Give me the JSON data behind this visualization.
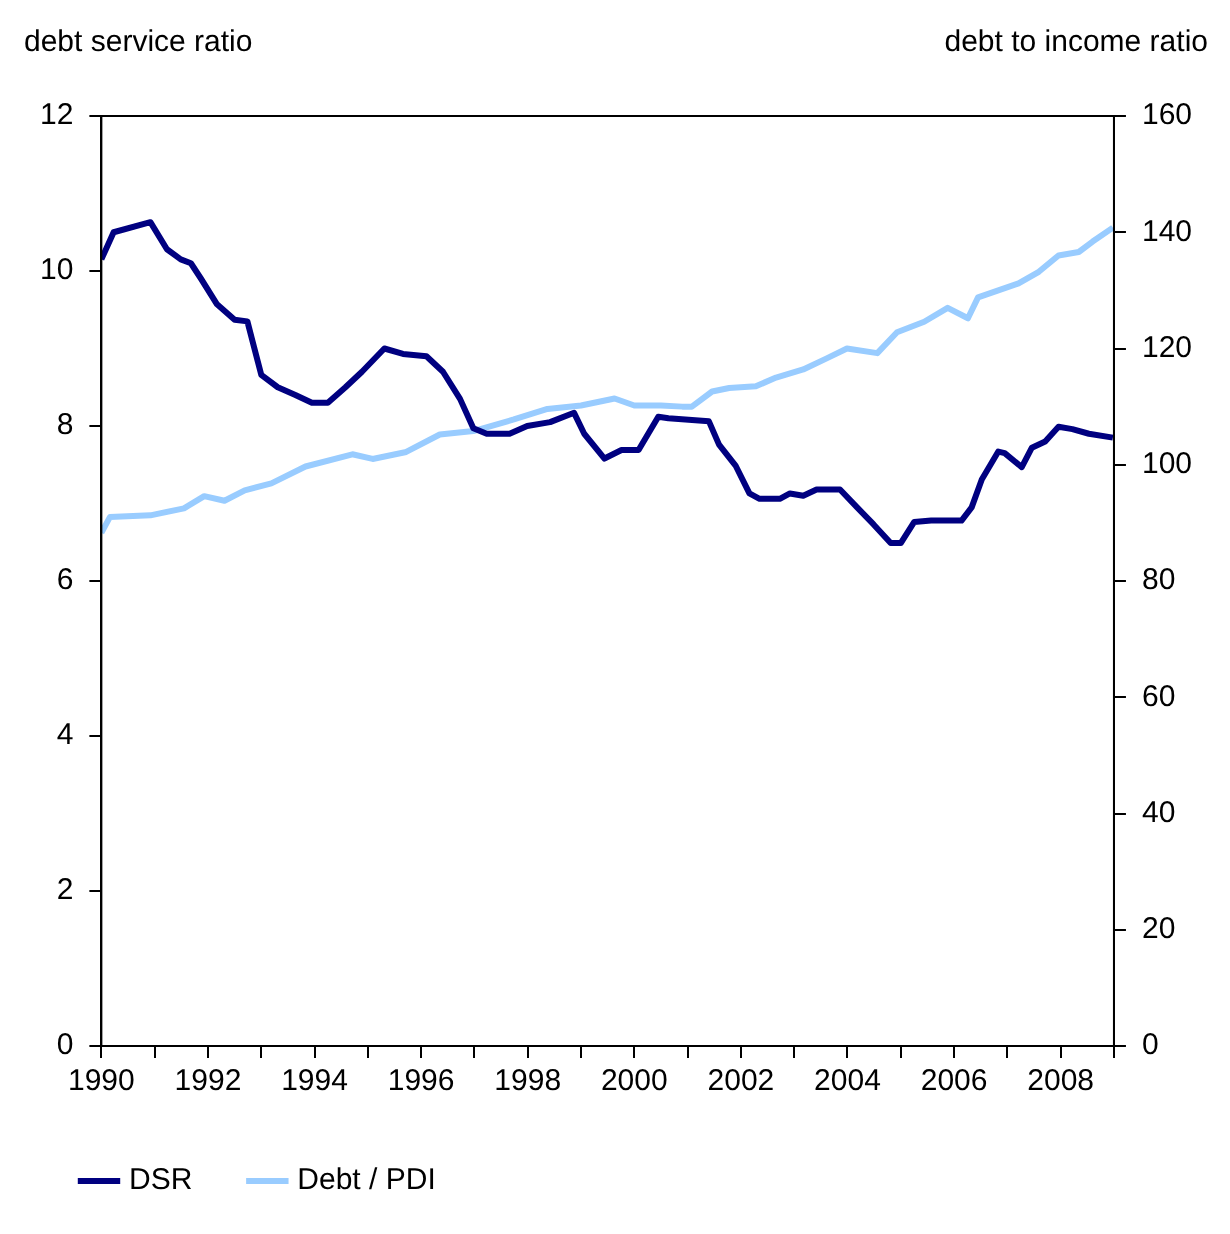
{
  "chart_data": {
    "type": "line",
    "ylabel": "debt service ratio",
    "y2label": "debt to income ratio",
    "xlim": [
      1990,
      2009
    ],
    "xticks": [
      1990,
      {
        "value": 1991,
        "label": null
      },
      1992,
      {
        "value": 1993,
        "label": null
      },
      1994,
      {
        "value": 1995,
        "label": null
      },
      1996,
      {
        "value": 1997,
        "label": null
      },
      1998,
      {
        "value": 1999,
        "label": null
      },
      2000,
      {
        "value": 2001,
        "label": null
      },
      2002,
      {
        "value": 2003,
        "label": null
      },
      2004,
      {
        "value": 2005,
        "label": null
      },
      2006,
      {
        "value": 2007,
        "label": null
      },
      2008,
      {
        "value": 2009,
        "label": null
      }
    ],
    "ylim": [
      0,
      12
    ],
    "yticks": [
      0,
      2,
      4,
      6,
      8,
      10,
      12
    ],
    "y2lim": [
      0,
      160
    ],
    "y2ticks": [
      0,
      20,
      40,
      60,
      80,
      100,
      120,
      140,
      160
    ],
    "grid": false,
    "legend": "bottom",
    "marker": "none",
    "line_style": "solid",
    "series": [
      {
        "name": "DSR",
        "color": "#000080",
        "x": [
          1990.0,
          1990.23,
          1990.92,
          1991.23,
          1991.49,
          1991.68,
          1991.87,
          1992.17,
          1992.5,
          1992.74,
          1993.0,
          1993.31,
          1993.64,
          1993.95,
          1994.25,
          1994.58,
          1994.89,
          1995.31,
          1995.66,
          1996.1,
          1996.41,
          1996.73,
          1996.98,
          1997.23,
          1997.66,
          1997.99,
          1998.42,
          1998.87,
          1999.06,
          1999.44,
          1999.76,
          2000.08,
          2000.45,
          2000.64,
          2001.4,
          2001.59,
          2001.9,
          2002.16,
          2002.35,
          2002.73,
          2002.92,
          2003.17,
          2003.42,
          2003.86,
          2004.18,
          2004.49,
          2004.81,
          2005.0,
          2005.25,
          2005.57,
          2006.14,
          2006.33,
          2006.52,
          2006.83,
          2006.95,
          2007.27,
          2007.46,
          2007.71,
          2007.96,
          2008.22,
          2008.53,
          2008.98
        ],
        "values": [
          10.15,
          10.5,
          10.63,
          10.28,
          10.15,
          10.1,
          9.9,
          9.57,
          9.37,
          9.35,
          8.66,
          8.5,
          8.4,
          8.3,
          8.3,
          8.5,
          8.7,
          9.0,
          8.93,
          8.9,
          8.7,
          8.35,
          7.97,
          7.9,
          7.9,
          8.0,
          8.05,
          8.17,
          7.9,
          7.58,
          7.69,
          7.69,
          8.12,
          8.1,
          8.06,
          7.76,
          7.49,
          7.13,
          7.06,
          7.06,
          7.13,
          7.1,
          7.18,
          7.18,
          6.95,
          6.73,
          6.49,
          6.49,
          6.76,
          6.78,
          6.78,
          6.95,
          7.31,
          7.67,
          7.65,
          7.47,
          7.72,
          7.8,
          7.99,
          7.96,
          7.9,
          7.85
        ]
      },
      {
        "name": "Debt / PDI",
        "color": "#99ccff",
        "axis": "y2",
        "x": [
          1990.0,
          1990.16,
          1990.92,
          1991.55,
          1991.93,
          1992.31,
          1992.69,
          1993.19,
          1993.83,
          1994.71,
          1995.09,
          1995.72,
          1996.35,
          1996.98,
          1997.74,
          1998.37,
          1999.0,
          1999.63,
          2000.0,
          2000.5,
          2000.9,
          2001.08,
          2001.46,
          2001.78,
          2002.28,
          2002.66,
          2003.17,
          2003.61,
          2003.99,
          2004.56,
          2004.93,
          2005.44,
          2005.88,
          2006.26,
          2006.45,
          2006.83,
          2007.21,
          2007.59,
          2007.96,
          2008.34,
          2008.6,
          2008.98
        ],
        "values": [
          88.3,
          91,
          91.3,
          92.5,
          94.6,
          93.8,
          95.6,
          96.8,
          99.7,
          101.8,
          101,
          102.2,
          105.2,
          105.8,
          107.8,
          109.6,
          110.2,
          111.4,
          110.2,
          110.2,
          110,
          110,
          112.6,
          113.2,
          113.5,
          115,
          116.4,
          118.3,
          120,
          119.2,
          122.8,
          124.6,
          127,
          125.2,
          128.8,
          130,
          131.2,
          133.2,
          136,
          136.6,
          138.4,
          140.8
        ]
      }
    ]
  }
}
